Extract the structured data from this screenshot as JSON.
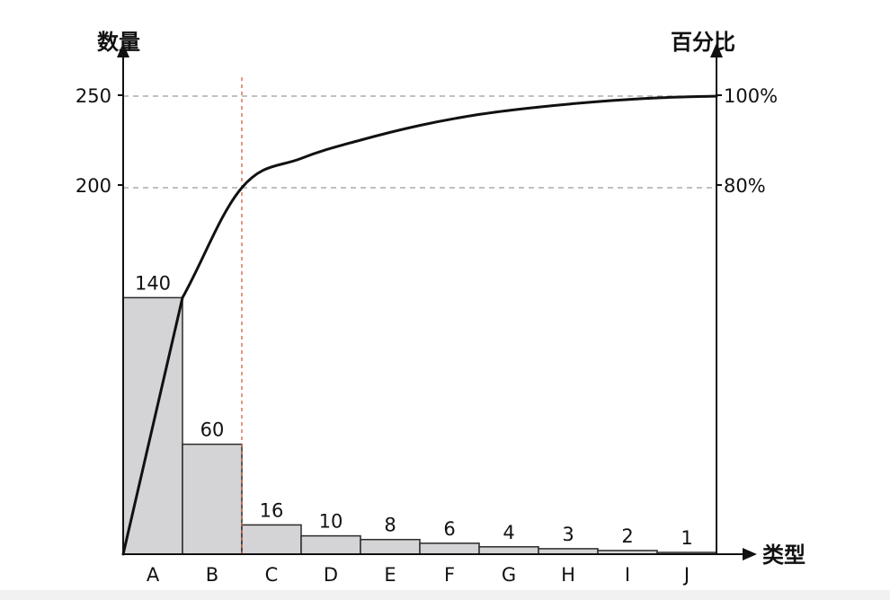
{
  "chart_data": {
    "type": "bar",
    "categories": [
      "A",
      "B",
      "C",
      "D",
      "E",
      "F",
      "G",
      "H",
      "I",
      "J"
    ],
    "series": [
      {
        "values": [
          140,
          60,
          16,
          10,
          8,
          6,
          4,
          3,
          2,
          1
        ]
      }
    ],
    "line_series": [
      {
        "values": [
          140,
          200,
          216,
          226,
          234,
          240,
          244,
          247,
          249,
          250
        ],
        "axis": "right"
      }
    ],
    "title": "",
    "ylabel": "数量",
    "y2label": "百分比",
    "xlabel": "类型",
    "ylim": [
      0,
      250
    ],
    "y2lim": [
      0,
      100
    ],
    "yticks": [
      "200",
      "250"
    ],
    "y2ticks": [
      "80%",
      "100%"
    ],
    "grid": false,
    "bar_fill": "#d4d4d6",
    "line_color": "#111111"
  }
}
